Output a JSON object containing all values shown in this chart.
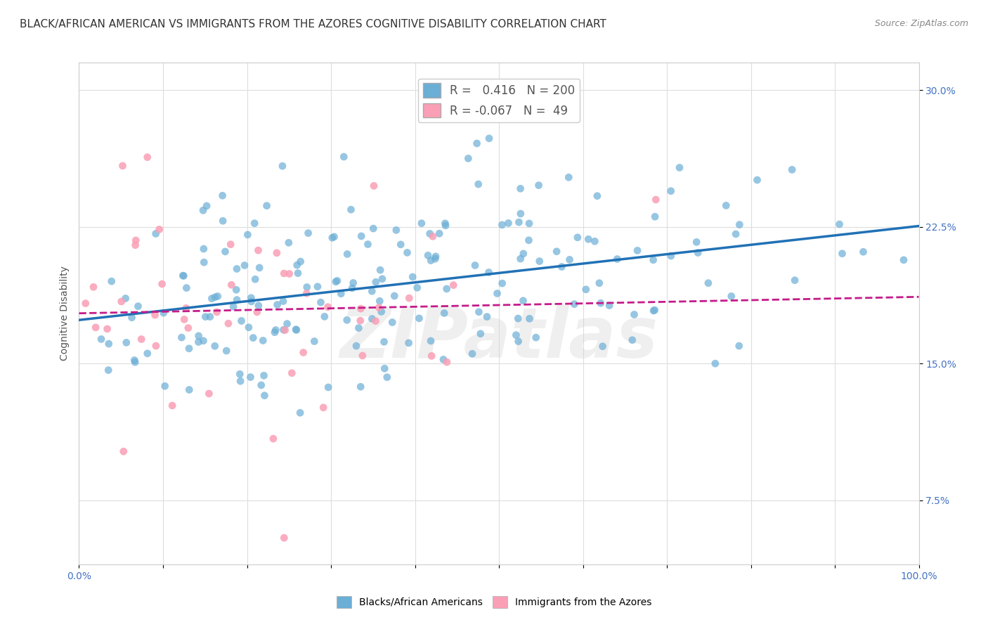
{
  "title": "BLACK/AFRICAN AMERICAN VS IMMIGRANTS FROM THE AZORES COGNITIVE DISABILITY CORRELATION CHART",
  "source": "Source: ZipAtlas.com",
  "ylabel": "Cognitive Disability",
  "xlabel": "",
  "watermark": "ZIPatlas",
  "blue_R": 0.416,
  "blue_N": 200,
  "pink_R": -0.067,
  "pink_N": 49,
  "blue_color": "#6baed6",
  "pink_color": "#fa9fb5",
  "blue_line_color": "#2171b5",
  "pink_line_color": "#c51b8a",
  "xlim": [
    0.0,
    1.0
  ],
  "ylim": [
    0.04,
    0.315
  ],
  "x_ticks": [
    0.0,
    0.1,
    0.2,
    0.3,
    0.4,
    0.5,
    0.6,
    0.7,
    0.8,
    0.9,
    1.0
  ],
  "x_tick_labels": [
    "0.0%",
    "",
    "",
    "",
    "",
    "",
    "",
    "",
    "",
    "",
    "100.0%"
  ],
  "y_ticks": [
    0.075,
    0.15,
    0.225,
    0.3
  ],
  "y_tick_labels": [
    "7.5%",
    "15.0%",
    "22.5%",
    "30.0%"
  ],
  "legend_label_blue": "Blacks/African Americans",
  "legend_label_pink": "Immigrants from the Azores",
  "title_fontsize": 11,
  "axis_label_fontsize": 10,
  "tick_fontsize": 10,
  "legend_fontsize": 10,
  "background_color": "#ffffff",
  "grid_color": "#dddddd"
}
